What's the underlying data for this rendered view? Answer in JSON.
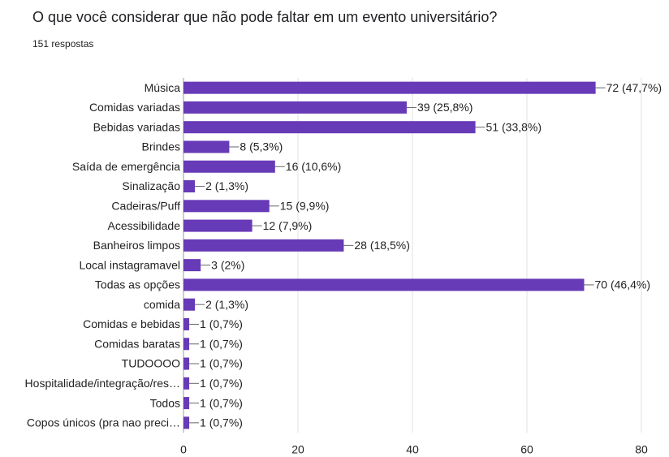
{
  "chart_data": {
    "type": "hbar",
    "title": "O que você considerar que não pode faltar em um evento universitário?",
    "subtitle": "151 respostas",
    "categories": [
      "Música",
      "Comidas variadas",
      "Bebidas variadas",
      "Brindes",
      "Saída de emergência",
      "Sinalização",
      "Cadeiras/Puff",
      "Acessibilidade",
      "Banheiros limpos",
      "Local instagramavel",
      "Todas as opções",
      "comida",
      "Comidas e bebidas",
      "Comidas baratas",
      "TUDOOOO",
      "Hospitalidade/integração/res…",
      "Todos",
      "Copos únicos (pra nao preci…"
    ],
    "values": [
      72,
      39,
      51,
      8,
      16,
      2,
      15,
      12,
      28,
      3,
      70,
      2,
      1,
      1,
      1,
      1,
      1,
      1
    ],
    "value_labels": [
      "72 (47,7%)",
      "39 (25,8%)",
      "51 (33,8%)",
      "8 (5,3%)",
      "16 (10,6%)",
      "2 (1,3%)",
      "15 (9,9%)",
      "12 (7,9%)",
      "28 (18,5%)",
      "3 (2%)",
      "70 (46,4%)",
      "2 (1,3%)",
      "1 (0,7%)",
      "1 (0,7%)",
      "1 (0,7%)",
      "1 (0,7%)",
      "1 (0,7%)",
      "1 (0,7%)"
    ],
    "color": "#673ab7",
    "xlim": [
      0,
      80
    ],
    "xticks": [
      0,
      20,
      40,
      60,
      80
    ],
    "grid": true
  }
}
